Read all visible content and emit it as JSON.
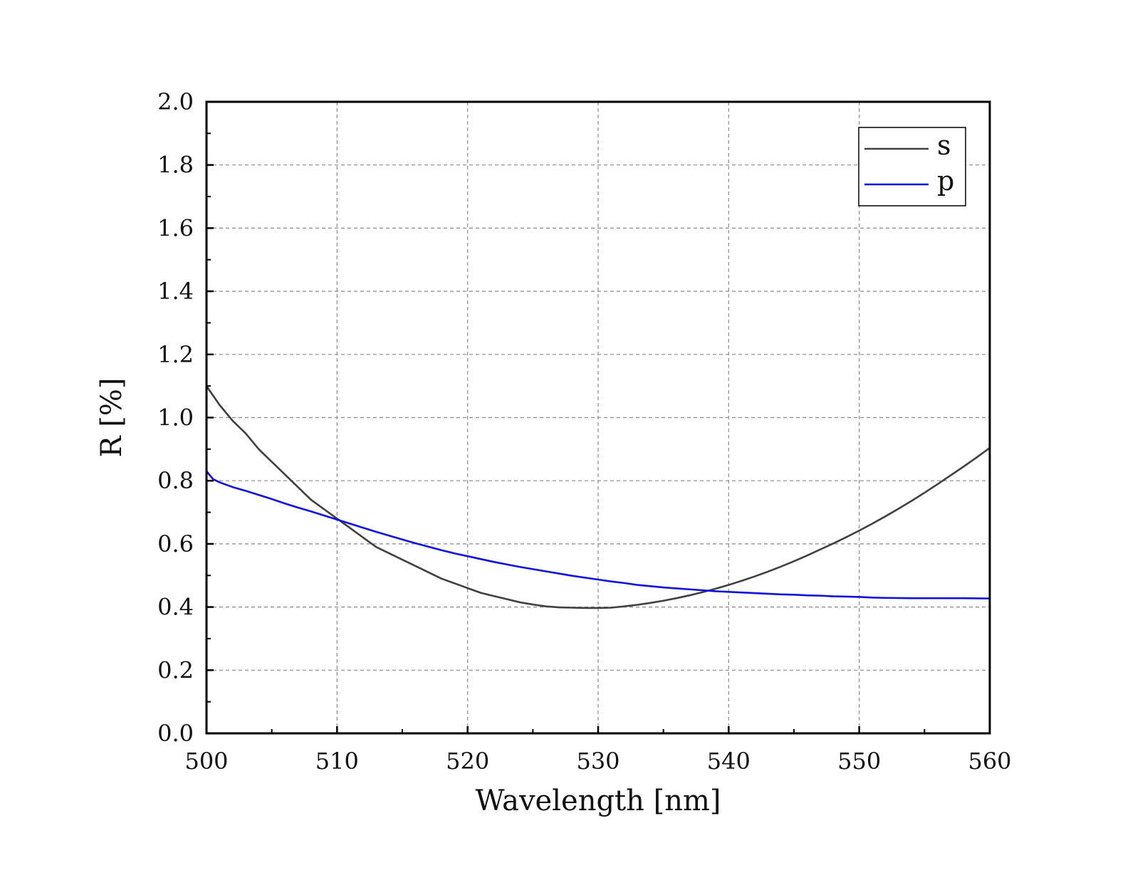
{
  "chart_data": {
    "type": "line",
    "title": "",
    "xlabel": "Wavelength [nm]",
    "ylabel": "R [%]",
    "xlim": [
      500,
      560
    ],
    "ylim": [
      0.0,
      2.0
    ],
    "x_ticks": [
      500,
      510,
      520,
      530,
      540,
      550,
      560
    ],
    "x_tick_labels": [
      "500",
      "510",
      "520",
      "530",
      "540",
      "550",
      "560"
    ],
    "y_ticks": [
      0.0,
      0.2,
      0.4,
      0.6,
      0.8,
      1.0,
      1.2,
      1.4,
      1.6,
      1.8,
      2.0
    ],
    "y_tick_labels": [
      "0.0",
      "0.2",
      "0.4",
      "0.6",
      "0.8",
      "1.0",
      "1.2",
      "1.4",
      "1.6",
      "1.8",
      "2.0"
    ],
    "grid": true,
    "legend_position": "top-right",
    "series": [
      {
        "name": "s",
        "color": "#404040",
        "x": [
          500,
          501,
          502,
          503,
          504,
          505,
          506,
          507,
          508,
          509,
          510,
          511,
          512,
          513,
          514,
          515,
          516,
          517,
          518,
          519,
          520,
          521,
          522,
          523,
          524,
          525,
          526,
          527,
          528,
          529,
          530,
          531,
          532,
          533,
          534,
          535,
          536,
          537,
          538,
          539,
          540,
          541,
          542,
          543,
          544,
          545,
          546,
          547,
          548,
          549,
          550,
          551,
          552,
          553,
          554,
          555,
          556,
          557,
          558,
          559,
          560
        ],
        "y": [
          1.1,
          1.04,
          0.99,
          0.95,
          0.9,
          0.86,
          0.82,
          0.78,
          0.74,
          0.71,
          0.68,
          0.65,
          0.62,
          0.59,
          0.57,
          0.55,
          0.53,
          0.51,
          0.49,
          0.475,
          0.46,
          0.445,
          0.435,
          0.425,
          0.415,
          0.408,
          0.402,
          0.399,
          0.398,
          0.397,
          0.397,
          0.398,
          0.402,
          0.407,
          0.413,
          0.42,
          0.428,
          0.437,
          0.447,
          0.458,
          0.47,
          0.483,
          0.497,
          0.512,
          0.528,
          0.545,
          0.563,
          0.582,
          0.601,
          0.621,
          0.642,
          0.664,
          0.687,
          0.711,
          0.736,
          0.762,
          0.789,
          0.817,
          0.845,
          0.874,
          0.904
        ]
      },
      {
        "name": "p",
        "color": "#1010e0",
        "x": [
          500,
          500.5,
          501,
          502,
          503,
          504,
          505,
          506,
          507,
          508,
          509,
          510,
          511,
          512,
          513,
          514,
          515,
          516,
          517,
          518,
          519,
          520,
          521,
          522,
          523,
          524,
          525,
          526,
          527,
          528,
          529,
          530,
          531,
          532,
          533,
          534,
          535,
          536,
          537,
          538,
          539,
          540,
          541,
          542,
          543,
          544,
          545,
          546,
          547,
          548,
          549,
          550,
          551,
          552,
          554,
          556,
          558,
          560
        ],
        "y": [
          0.83,
          0.805,
          0.795,
          0.78,
          0.768,
          0.755,
          0.742,
          0.728,
          0.715,
          0.703,
          0.69,
          0.677,
          0.664,
          0.651,
          0.638,
          0.626,
          0.614,
          0.602,
          0.591,
          0.58,
          0.57,
          0.561,
          0.552,
          0.543,
          0.535,
          0.527,
          0.52,
          0.513,
          0.506,
          0.499,
          0.493,
          0.487,
          0.481,
          0.476,
          0.47,
          0.466,
          0.462,
          0.459,
          0.456,
          0.453,
          0.45,
          0.448,
          0.446,
          0.444,
          0.442,
          0.44,
          0.439,
          0.437,
          0.436,
          0.434,
          0.433,
          0.432,
          0.43,
          0.429,
          0.428,
          0.428,
          0.428,
          0.427
        ]
      }
    ]
  }
}
